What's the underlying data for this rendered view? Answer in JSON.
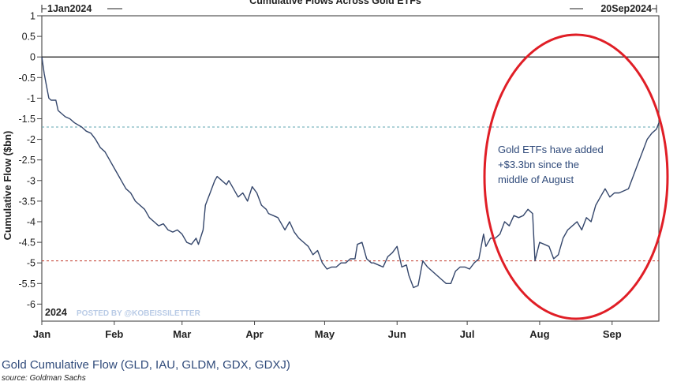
{
  "chart_data": {
    "type": "line",
    "title": "Cumulative Flows Across Gold ETFs",
    "start_label": "1Jan2024",
    "end_label": "20Sep2024",
    "year_label": "2024",
    "watermark": "POSTED BY @KOBEISSILETTER",
    "ylabel": "Cumulative Flow ($bn)",
    "xlabel": "",
    "ylim": [
      -6.5,
      1
    ],
    "yticks": [
      1,
      0.5,
      0,
      -0.5,
      -1,
      -1.5,
      -2,
      -2.5,
      -3,
      -3.5,
      -4,
      -4.5,
      -5,
      -5.5,
      -6
    ],
    "ytick_labels": [
      "1",
      "0.5",
      "0",
      "-0.5",
      "-1",
      "-1.5",
      "-2",
      "-2.5",
      "-3",
      "-3.5",
      "-4",
      "-4.5",
      "-5",
      "-5.5",
      "-6"
    ],
    "xlim_days": [
      0,
      264
    ],
    "xticks": [
      {
        "label": "Jan",
        "day": 0
      },
      {
        "label": "Feb",
        "day": 31
      },
      {
        "label": "Mar",
        "day": 60
      },
      {
        "label": "Apr",
        "day": 91
      },
      {
        "label": "May",
        "day": 121
      },
      {
        "label": "Jun",
        "day": 152
      },
      {
        "label": "Jul",
        "day": 182
      },
      {
        "label": "Aug",
        "day": 213
      },
      {
        "label": "Sep",
        "day": 244
      }
    ],
    "reference_lines": [
      {
        "value": 0,
        "style": "solid",
        "color": "#000000"
      },
      {
        "value": -1.7,
        "style": "dashed",
        "color": "#5fa6b0"
      },
      {
        "value": -4.95,
        "style": "dashed",
        "color": "#c0392b"
      }
    ],
    "series": [
      {
        "color": "#34466b",
        "x": [
          0,
          1,
          2,
          3,
          4,
          6,
          7,
          10,
          12,
          14,
          17,
          19,
          21,
          23,
          25,
          27,
          29,
          31,
          33,
          34,
          36,
          38,
          40,
          42,
          44,
          46,
          48,
          50,
          52,
          54,
          56,
          58,
          60,
          62,
          64,
          66,
          67,
          69,
          70,
          72,
          74,
          75,
          77,
          79,
          80,
          82,
          84,
          86,
          88,
          90,
          92,
          94,
          96,
          97,
          99,
          101,
          103,
          104,
          106,
          108,
          110,
          112,
          114,
          116,
          118,
          120,
          122,
          124,
          126,
          128,
          130,
          132,
          134,
          135,
          137,
          139,
          141,
          142,
          144,
          146,
          148,
          150,
          152,
          154,
          156,
          157,
          159,
          161,
          163,
          165,
          167,
          169,
          171,
          173,
          175,
          177,
          179,
          181,
          183,
          185,
          187,
          189,
          190,
          192,
          194,
          196,
          198,
          200,
          202,
          204,
          206,
          208,
          210,
          211,
          213,
          215,
          217,
          219,
          221,
          223,
          225,
          227,
          229,
          231,
          233,
          235,
          237,
          239,
          241,
          243,
          245,
          247,
          249,
          251,
          253,
          255,
          257,
          259,
          261,
          263,
          264
        ],
        "values": [
          0,
          -0.4,
          -0.7,
          -1.0,
          -1.05,
          -1.05,
          -1.3,
          -1.45,
          -1.5,
          -1.6,
          -1.7,
          -1.8,
          -1.85,
          -2.0,
          -2.2,
          -2.3,
          -2.5,
          -2.7,
          -2.9,
          -3.0,
          -3.2,
          -3.3,
          -3.5,
          -3.6,
          -3.7,
          -3.9,
          -4.0,
          -4.1,
          -4.05,
          -4.2,
          -4.25,
          -4.2,
          -4.3,
          -4.5,
          -4.55,
          -4.4,
          -4.55,
          -4.2,
          -3.6,
          -3.3,
          -3.0,
          -2.9,
          -3.0,
          -3.1,
          -3.0,
          -3.2,
          -3.4,
          -3.3,
          -3.5,
          -3.15,
          -3.3,
          -3.6,
          -3.7,
          -3.8,
          -3.85,
          -3.9,
          -4.1,
          -4.2,
          -4.0,
          -4.25,
          -4.4,
          -4.5,
          -4.6,
          -4.8,
          -4.7,
          -5.0,
          -5.15,
          -5.1,
          -5.1,
          -5.0,
          -5.0,
          -4.9,
          -4.9,
          -4.55,
          -4.5,
          -4.9,
          -5.0,
          -5.0,
          -5.05,
          -5.1,
          -4.85,
          -4.75,
          -4.6,
          -5.1,
          -5.05,
          -5.3,
          -5.6,
          -5.55,
          -4.95,
          -5.1,
          -5.2,
          -5.3,
          -5.4,
          -5.5,
          -5.5,
          -5.2,
          -5.1,
          -5.1,
          -5.15,
          -5.0,
          -4.9,
          -4.3,
          -4.6,
          -4.4,
          -4.4,
          -4.3,
          -4.0,
          -4.1,
          -3.85,
          -3.9,
          -3.85,
          -3.7,
          -3.8,
          -4.95,
          -4.5,
          -4.55,
          -4.6,
          -4.9,
          -4.8,
          -4.4,
          -4.2,
          -4.1,
          -4.0,
          -4.2,
          -3.9,
          -4.0,
          -3.6,
          -3.4,
          -3.2,
          -3.4,
          -3.3,
          -3.3,
          -3.25,
          -3.2,
          -2.9,
          -2.6,
          -2.3,
          -2.0,
          -1.85,
          -1.75,
          -1.6
        ]
      }
    ],
    "annotation": "Gold ETFs have added +$3.3bn since the middle of August",
    "highlight": {
      "shape": "ellipse",
      "color": "#e01e26"
    },
    "grid": false,
    "legend": "none"
  },
  "caption": "Gold Cumulative Flow (GLD, IAU, GLDM, GDX, GDXJ)",
  "source": "source: Goldman Sachs"
}
